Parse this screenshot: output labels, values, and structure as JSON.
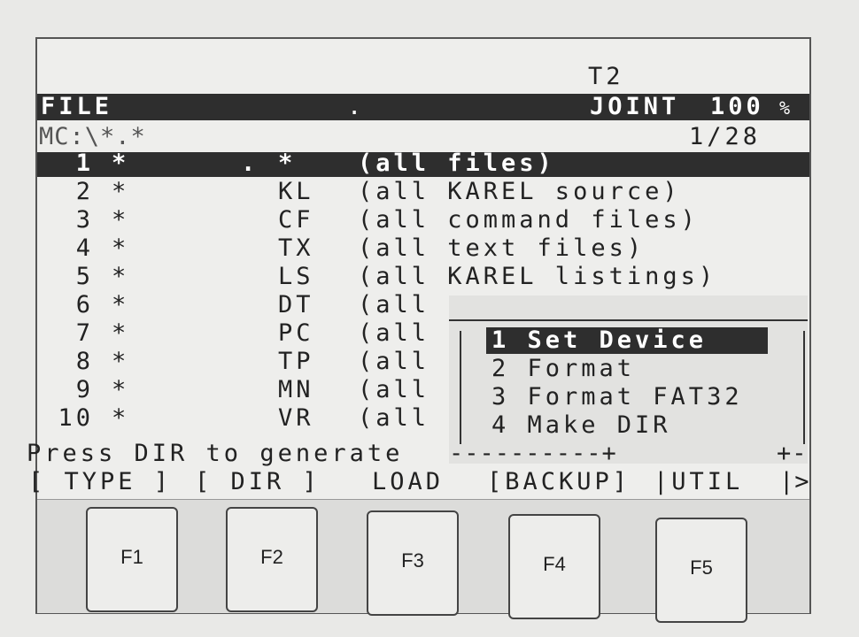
{
  "status": {
    "mode": "T2"
  },
  "header": {
    "title": "FILE",
    "dot": ".",
    "motion": "JOINT",
    "override": "100",
    "override_unit": "%"
  },
  "path": {
    "value": "MC:\\*.*",
    "position": "1/28"
  },
  "files": [
    {
      "num": "1",
      "name": "*",
      "dot": ".",
      "ext": "*",
      "desc": "(all files)",
      "selected": true
    },
    {
      "num": "2",
      "name": "*",
      "ext": "KL",
      "desc": "(all KAREL source)"
    },
    {
      "num": "3",
      "name": "*",
      "ext": "CF",
      "desc": "(all command files)"
    },
    {
      "num": "4",
      "name": "*",
      "ext": "TX",
      "desc": "(all text files)"
    },
    {
      "num": "5",
      "name": "*",
      "ext": "LS",
      "desc": "(all KAREL listings)"
    },
    {
      "num": "6",
      "name": "*",
      "ext": "DT",
      "desc": "(all"
    },
    {
      "num": "7",
      "name": "*",
      "ext": "PC",
      "desc": "(all"
    },
    {
      "num": "8",
      "name": "*",
      "ext": "TP",
      "desc": "(all"
    },
    {
      "num": "9",
      "name": "*",
      "ext": "MN",
      "desc": "(all"
    },
    {
      "num": "10",
      "name": "*",
      "ext": "VR",
      "desc": "(all"
    }
  ],
  "popup": {
    "items": [
      "1 Set Device",
      "2 Format",
      "3 Format FAT32",
      "4 Make DIR"
    ],
    "selected": 0,
    "bottom_border": "----------+",
    "bottom_right": "+-"
  },
  "message": "Press DIR to generate",
  "function_labels": {
    "f1": "[ TYPE ]",
    "f2": "[ DIR ]",
    "f3": "LOAD",
    "f4": "[BACKUP]",
    "f5": "|UTIL",
    "next": "|>"
  },
  "fkeys": [
    "F1",
    "F2",
    "F3",
    "F4",
    "F5"
  ],
  "colors": {
    "screen_bg": "#eeeeec",
    "highlight_bg": "#2e2e2e",
    "text": "#222222"
  }
}
